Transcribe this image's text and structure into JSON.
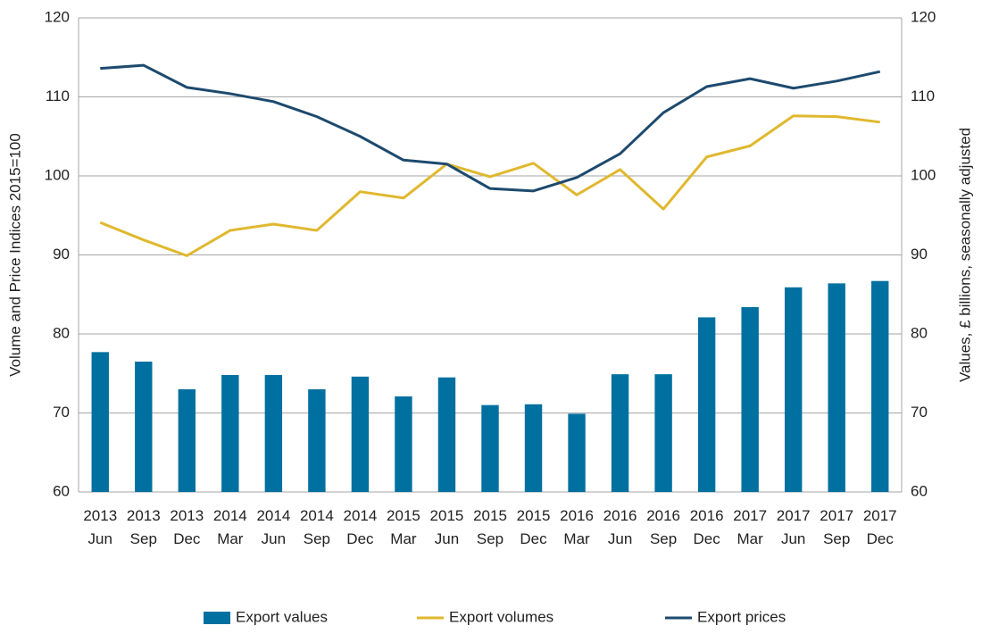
{
  "chart_data": {
    "type": "bar-line",
    "categories": [
      "2013 Jun",
      "2013 Sep",
      "2013 Dec",
      "2014 Mar",
      "2014 Jun",
      "2014 Sep",
      "2014 Dec",
      "2015 Mar",
      "2015 Jun",
      "2015 Sep",
      "2015 Dec",
      "2016 Mar",
      "2016 Jun",
      "2016 Sep",
      "2016 Dec",
      "2017 Mar",
      "2017 Jun",
      "2017 Sep",
      "2017 Dec"
    ],
    "series": [
      {
        "name": "Export values",
        "type": "bar",
        "axis": "y2",
        "color": "#0070a0",
        "values": [
          77.7,
          76.5,
          73.0,
          74.8,
          74.8,
          73.0,
          74.6,
          72.1,
          74.5,
          71.0,
          71.1,
          69.9,
          74.9,
          74.9,
          82.1,
          83.4,
          85.9,
          86.4,
          86.7
        ]
      },
      {
        "name": "Export volumes",
        "type": "line",
        "color": "#e0b82e",
        "values": [
          94.1,
          91.9,
          89.9,
          93.1,
          93.9,
          93.1,
          98.0,
          97.2,
          101.5,
          99.9,
          101.6,
          97.6,
          100.8,
          95.8,
          102.4,
          103.8,
          107.6,
          107.5,
          106.8
        ]
      },
      {
        "name": "Export prices",
        "type": "line",
        "color": "#1d4a6e",
        "values": [
          113.6,
          114.0,
          111.2,
          110.4,
          109.4,
          107.5,
          105.0,
          102.0,
          101.5,
          98.4,
          98.1,
          99.8,
          102.8,
          108.0,
          111.3,
          112.3,
          111.1,
          112.0,
          113.2
        ]
      }
    ],
    "y_label": "Volume and Price Indices 2015=100",
    "y2_label": "Values, £ billions, seasonally adjusted",
    "ylim": [
      60,
      120
    ],
    "yticks": [
      60,
      70,
      80,
      90,
      100,
      110,
      120
    ],
    "y2lim": [
      60,
      120
    ],
    "y2ticks": [
      60,
      70,
      80,
      90,
      100,
      110,
      120
    ],
    "grid": true,
    "legend": "bottom"
  }
}
